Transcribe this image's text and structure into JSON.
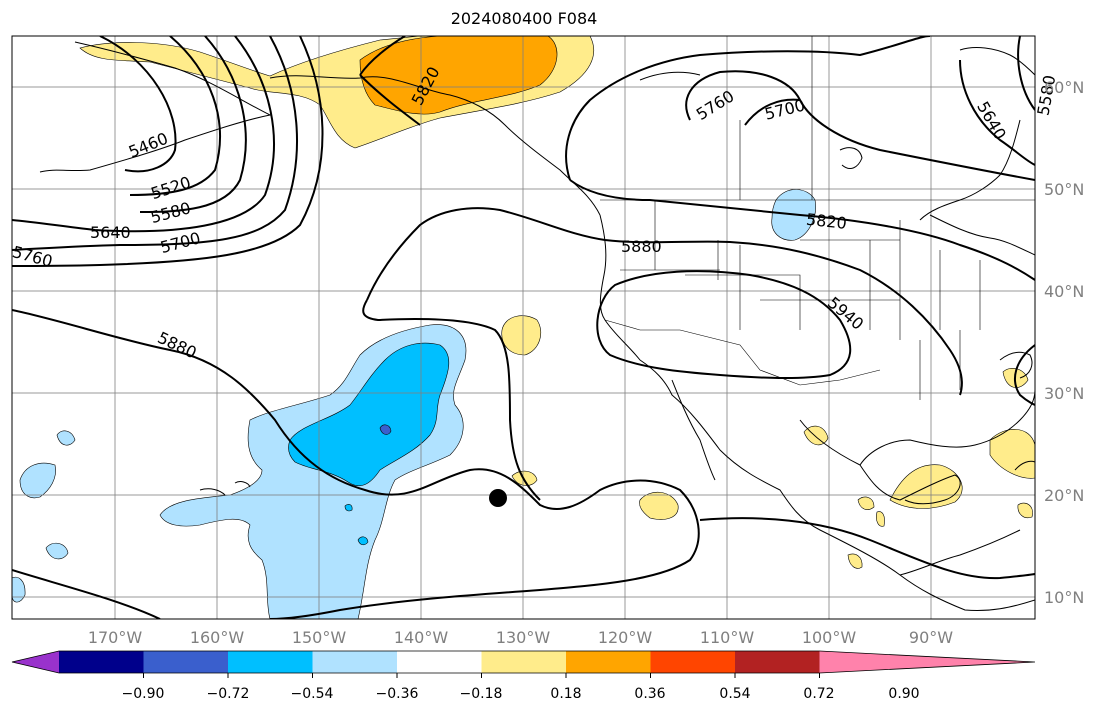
{
  "title": "2024080400 F084",
  "lon_labels": [
    "170°W",
    "160°W",
    "150°W",
    "140°W",
    "130°W",
    "120°W",
    "110°W",
    "100°W",
    "90°W"
  ],
  "lat_labels": [
    "60°N",
    "50°N",
    "40°N",
    "30°N",
    "20°N",
    "10°N"
  ],
  "contour_labels": [
    "5460",
    "5520",
    "5580",
    "5640",
    "5700",
    "5760",
    "5880",
    "5820",
    "5760",
    "5700",
    "5640",
    "5580",
    "5820",
    "5880",
    "5940"
  ],
  "colorbar": {
    "colors": [
      "#9932cc",
      "#00008b",
      "#3a5fcd",
      "#00bfff",
      "#b0e2ff",
      "#ffffff",
      "#ffec8b",
      "#ffa500",
      "#ff4500",
      "#b22222",
      "#ff82ab"
    ],
    "labels": [
      "−0.90",
      "−0.72",
      "−0.54",
      "−0.36",
      "−0.18",
      "0.18",
      "0.36",
      "0.54",
      "0.72",
      "0.90"
    ]
  }
}
